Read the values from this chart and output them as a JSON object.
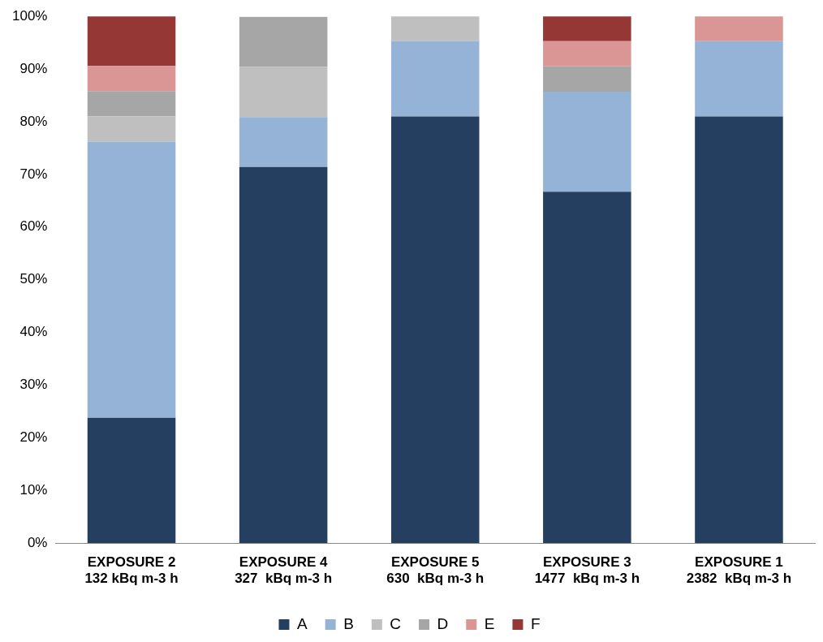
{
  "chart_data": {
    "type": "bar",
    "stacked": true,
    "categories": [
      "EXPOSURE 2\n132 kBq m-3 h",
      "EXPOSURE 4\n327  kBq m-3 h",
      "EXPOSURE 5\n630  kBq m-3 h",
      "EXPOSURE 3\n1477  kBq m-3 h",
      "EXPOSURE 1\n2382  kBq m-3 h"
    ],
    "series": [
      {
        "name": "A",
        "color": "#243f60",
        "values": [
          23.8,
          71.4,
          81.0,
          66.7,
          81.0
        ]
      },
      {
        "name": "B",
        "color": "#95b3d7",
        "values": [
          52.4,
          9.5,
          14.3,
          19.0,
          14.3
        ]
      },
      {
        "name": "C",
        "color": "#bfbfbf",
        "values": [
          4.8,
          9.5,
          4.8,
          null,
          null
        ]
      },
      {
        "name": "D",
        "color": "#a6a6a6",
        "values": [
          4.8,
          9.5,
          null,
          4.8,
          null
        ]
      },
      {
        "name": "E",
        "color": "#d99694",
        "values": [
          4.8,
          null,
          null,
          4.8,
          4.8
        ]
      },
      {
        "name": "F",
        "color": "#953735",
        "values": [
          9.5,
          null,
          null,
          4.8,
          null
        ]
      }
    ],
    "ylim": [
      0,
      100
    ],
    "yticks": [
      {
        "value": 0,
        "label": "0%"
      },
      {
        "value": 10,
        "label": "10%"
      },
      {
        "value": 20,
        "label": "20%"
      },
      {
        "value": 30,
        "label": "30%"
      },
      {
        "value": 40,
        "label": "40%"
      },
      {
        "value": 50,
        "label": "50%"
      },
      {
        "value": 60,
        "label": "60%"
      },
      {
        "value": 70,
        "label": "70%"
      },
      {
        "value": 80,
        "label": "80%"
      },
      {
        "value": 90,
        "label": "90%"
      },
      {
        "value": 100,
        "label": "100%"
      }
    ],
    "grid": false,
    "legend": "bottom"
  }
}
